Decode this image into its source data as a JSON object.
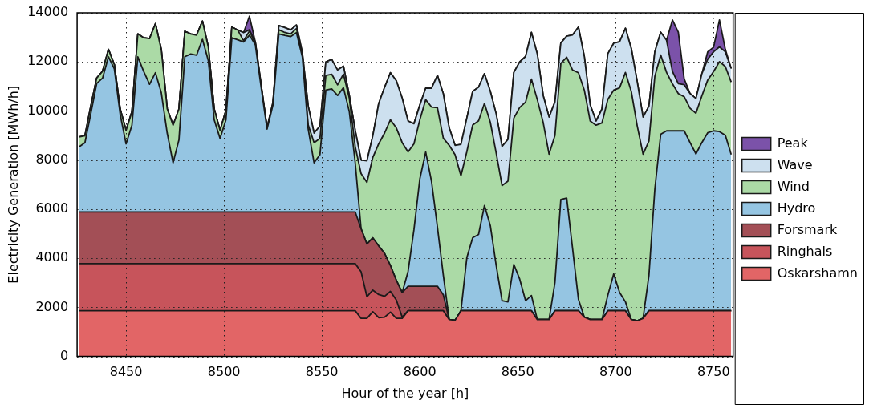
{
  "chart_data": {
    "type": "area",
    "stacked": true,
    "xlabel": "Hour of the year [h]",
    "ylabel": "Electricity Generation [MWh/h]",
    "xlim": [
      8425,
      8760
    ],
    "xticks": [
      8450,
      8500,
      8550,
      8600,
      8650,
      8700,
      8750
    ],
    "ylim": [
      0,
      14000
    ],
    "yticks": [
      0,
      2000,
      4000,
      6000,
      8000,
      10000,
      12000,
      14000
    ],
    "grid": true,
    "legend": "right",
    "x": [
      8426,
      8429,
      8432,
      8435,
      8438,
      8441,
      8444,
      8447,
      8450,
      8453,
      8456,
      8459,
      8462,
      8465,
      8468,
      8471,
      8474,
      8477,
      8480,
      8483,
      8486,
      8489,
      8492,
      8495,
      8498,
      8501,
      8504,
      8507,
      8510,
      8513,
      8516,
      8519,
      8522,
      8525,
      8528,
      8531,
      8534,
      8537,
      8540,
      8543,
      8546,
      8549,
      8552,
      8555,
      8558,
      8561,
      8564,
      8567,
      8570,
      8573,
      8576,
      8579,
      8582,
      8585,
      8588,
      8591,
      8594,
      8597,
      8600,
      8603,
      8606,
      8609,
      8612,
      8615,
      8618,
      8621,
      8624,
      8627,
      8630,
      8633,
      8636,
      8639,
      8642,
      8645,
      8648,
      8651,
      8654,
      8657,
      8660,
      8663,
      8666,
      8669,
      8672,
      8675,
      8678,
      8681,
      8684,
      8687,
      8690,
      8693,
      8696,
      8699,
      8702,
      8705,
      8708,
      8711,
      8714,
      8717,
      8720,
      8723,
      8726,
      8729,
      8732,
      8735,
      8738,
      8741,
      8744,
      8747,
      8750,
      8753,
      8756,
      8759
    ],
    "series": [
      {
        "name": "Oskarshamn",
        "color": "#e26566",
        "values": [
          1860,
          1860,
          1860,
          1860,
          1860,
          1860,
          1860,
          1860,
          1860,
          1860,
          1860,
          1860,
          1860,
          1860,
          1860,
          1860,
          1860,
          1860,
          1860,
          1860,
          1860,
          1860,
          1860,
          1860,
          1860,
          1860,
          1860,
          1860,
          1860,
          1860,
          1860,
          1860,
          1860,
          1860,
          1860,
          1860,
          1860,
          1860,
          1860,
          1860,
          1860,
          1860,
          1860,
          1860,
          1860,
          1860,
          1860,
          1860,
          1550,
          1550,
          1820,
          1580,
          1600,
          1800,
          1550,
          1550,
          1860,
          1860,
          1860,
          1860,
          1860,
          1860,
          1860,
          1500,
          1470,
          1860,
          1860,
          1860,
          1860,
          1860,
          1860,
          1860,
          1860,
          1860,
          1860,
          1860,
          1860,
          1860,
          1500,
          1500,
          1500,
          1860,
          1860,
          1860,
          1860,
          1860,
          1600,
          1500,
          1500,
          1500,
          1860,
          1860,
          1860,
          1860,
          1500,
          1450,
          1550,
          1860,
          1860,
          1860,
          1860,
          1860,
          1860,
          1860,
          1860,
          1860,
          1860,
          1860,
          1860,
          1860,
          1860,
          1860
        ]
      },
      {
        "name": "Ringhals",
        "color": "#c7545b",
        "values": [
          1920,
          1920,
          1920,
          1920,
          1920,
          1920,
          1920,
          1920,
          1920,
          1920,
          1920,
          1920,
          1920,
          1920,
          1920,
          1920,
          1920,
          1920,
          1920,
          1920,
          1920,
          1920,
          1920,
          1920,
          1920,
          1920,
          1920,
          1920,
          1920,
          1920,
          1920,
          1920,
          1920,
          1920,
          1920,
          1920,
          1920,
          1920,
          1920,
          1920,
          1920,
          1920,
          1920,
          1920,
          1920,
          1920,
          1920,
          1920,
          1900,
          880,
          880,
          940,
          850,
          850,
          750,
          50,
          0,
          0,
          0,
          0,
          0,
          0,
          0,
          0,
          0,
          0,
          0,
          0,
          0,
          0,
          0,
          0,
          0,
          0,
          0,
          0,
          0,
          0,
          0,
          0,
          0,
          0,
          0,
          0,
          0,
          0,
          0,
          0,
          0,
          0,
          0,
          0,
          0,
          0,
          0,
          0,
          0,
          0,
          0,
          0,
          0,
          0,
          0,
          0,
          0,
          0,
          0,
          0,
          0,
          0,
          0,
          0
        ]
      },
      {
        "name": "Forsmark",
        "color": "#a34f56",
        "values": [
          2110,
          2110,
          2110,
          2110,
          2110,
          2110,
          2110,
          2110,
          2110,
          2110,
          2110,
          2110,
          2110,
          2110,
          2110,
          2110,
          2110,
          2110,
          2110,
          2110,
          2110,
          2110,
          2110,
          2110,
          2110,
          2110,
          2110,
          2110,
          2110,
          2110,
          2110,
          2110,
          2110,
          2110,
          2110,
          2110,
          2110,
          2110,
          2110,
          2110,
          2110,
          2110,
          2110,
          2110,
          2110,
          2110,
          2110,
          2110,
          1750,
          2150,
          2130,
          1980,
          1750,
          1050,
          800,
          1000,
          1000,
          1000,
          1000,
          1000,
          1000,
          1000,
          650,
          0,
          0,
          0,
          0,
          0,
          0,
          0,
          0,
          0,
          0,
          0,
          0,
          0,
          0,
          0,
          0,
          0,
          0,
          0,
          0,
          0,
          0,
          0,
          0,
          0,
          0,
          0,
          0,
          0,
          0,
          0,
          0,
          0,
          0,
          0,
          0,
          0,
          0,
          0,
          0,
          0,
          0,
          0,
          0,
          0,
          0,
          0,
          0,
          0
        ]
      },
      {
        "name": "Hydro",
        "color": "#95c5e2",
        "values": [
          2650,
          2820,
          4010,
          5230,
          5450,
          6320,
          5830,
          3970,
          2770,
          3530,
          6320,
          5720,
          5200,
          5670,
          4850,
          3210,
          2000,
          2930,
          6320,
          6430,
          6380,
          7030,
          6160,
          3750,
          2990,
          3750,
          7090,
          7010,
          6920,
          7200,
          6810,
          5060,
          3370,
          4350,
          7250,
          7190,
          7140,
          7300,
          6320,
          3370,
          2000,
          2330,
          4960,
          5010,
          4740,
          5060,
          4080,
          2010,
          0,
          0,
          0,
          0,
          0,
          0,
          0,
          0,
          600,
          2300,
          4370,
          5470,
          4260,
          2410,
          800,
          0,
          0,
          0,
          2160,
          2980,
          3110,
          4290,
          3470,
          1850,
          410,
          360,
          1890,
          1290,
          410,
          620,
          0,
          0,
          0,
          1150,
          4530,
          4590,
          2540,
          460,
          0,
          0,
          0,
          0,
          630,
          1500,
          750,
          360,
          0,
          0,
          0,
          1450,
          4950,
          7190,
          7330,
          7330,
          7330,
          7330,
          6850,
          6390,
          6850,
          7250,
          7330,
          7300,
          7150,
          6370
        ]
      },
      {
        "name": "Wind",
        "color": "#abdaa6",
        "values": [
          400,
          280,
          300,
          220,
          280,
          300,
          170,
          220,
          550,
          550,
          930,
          1370,
          1860,
          2000,
          1750,
          990,
          1530,
          1260,
          1040,
          820,
          820,
          740,
          550,
          440,
          330,
          380,
          440,
          400,
          50,
          170,
          50,
          50,
          0,
          50,
          170,
          120,
          110,
          170,
          110,
          170,
          820,
          660,
          600,
          600,
          440,
          550,
          550,
          650,
          2250,
          2510,
          3280,
          4160,
          4900,
          5940,
          6210,
          6110,
          4870,
          3500,
          2410,
          2130,
          3040,
          4860,
          5580,
          7100,
          6750,
          5500,
          4320,
          4590,
          4630,
          4160,
          4210,
          4580,
          4690,
          4920,
          5960,
          6990,
          8090,
          8820,
          8960,
          8030,
          6740,
          5990,
          5550,
          5740,
          7270,
          9240,
          9250,
          8090,
          7920,
          8010,
          7980,
          7490,
          8330,
          9350,
          9290,
          7950,
          6690,
          5470,
          4600,
          3230,
          2380,
          1920,
          1520,
          1390,
          1400,
          1660,
          1900,
          2150,
          2420,
          2850,
          2800,
          2950
        ]
      },
      {
        "name": "Wave",
        "color": "#cde0ef",
        "values": [
          0,
          0,
          0,
          0,
          0,
          0,
          0,
          0,
          0,
          0,
          0,
          0,
          0,
          0,
          0,
          0,
          0,
          0,
          0,
          0,
          0,
          0,
          0,
          0,
          0,
          0,
          0,
          0,
          330,
          50,
          60,
          60,
          60,
          60,
          170,
          200,
          160,
          140,
          60,
          770,
          390,
          500,
          550,
          600,
          600,
          330,
          110,
          660,
          550,
          880,
          880,
          1640,
          1860,
          1920,
          1920,
          1810,
          1260,
          820,
          600,
          470,
          770,
          1320,
          1810,
          710,
          380,
          1280,
          1370,
          1370,
          1370,
          1210,
          1260,
          1590,
          1600,
          1700,
          1860,
          1860,
          1860,
          1900,
          1860,
          1100,
          1510,
          1370,
          830,
          860,
          1430,
          1860,
          1370,
          660,
          170,
          570,
          1860,
          1910,
          1880,
          1800,
          1750,
          1800,
          1510,
          1420,
          1000,
          930,
          1310,
          500,
          400,
          490,
          600,
          600,
          900,
          850,
          800,
          600,
          600,
          550
        ]
      },
      {
        "name": "Peak",
        "color": "#7b52a9",
        "values": [
          0,
          0,
          0,
          0,
          0,
          0,
          0,
          0,
          0,
          0,
          0,
          0,
          0,
          0,
          0,
          0,
          0,
          0,
          0,
          0,
          0,
          0,
          0,
          0,
          0,
          0,
          0,
          0,
          0,
          550,
          0,
          0,
          0,
          0,
          0,
          0,
          0,
          0,
          0,
          0,
          0,
          0,
          0,
          0,
          0,
          0,
          0,
          0,
          0,
          0,
          0,
          0,
          0,
          0,
          0,
          0,
          0,
          0,
          0,
          0,
          0,
          0,
          0,
          0,
          0,
          0,
          0,
          0,
          0,
          0,
          0,
          0,
          0,
          0,
          0,
          0,
          0,
          0,
          0,
          0,
          0,
          0,
          0,
          0,
          0,
          0,
          0,
          0,
          0,
          0,
          0,
          0,
          0,
          0,
          0,
          0,
          0,
          0,
          0,
          0,
          0,
          2100,
          2100,
          240,
          0,
          0,
          0,
          300,
          190,
          1100,
          100,
          0
        ]
      }
    ]
  }
}
